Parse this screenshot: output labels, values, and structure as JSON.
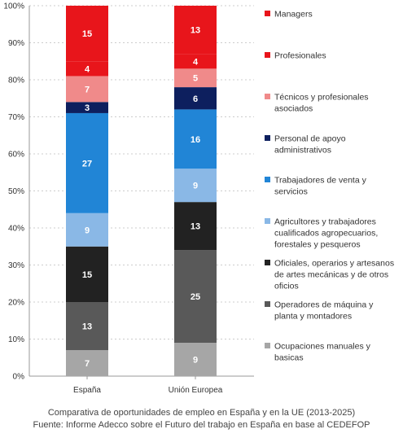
{
  "chart_data": {
    "type": "bar",
    "stacked": true,
    "categories": [
      "España",
      "Unión Europea"
    ],
    "yticks": [
      "0%",
      "10%",
      "20%",
      "30%",
      "40%",
      "50%",
      "60%",
      "70%",
      "80%",
      "90%",
      "100%"
    ],
    "ylim": [
      0,
      100
    ],
    "grid": "horizontal dashed",
    "legend_position": "right",
    "series": [
      {
        "name": "Ocupaciones manuales y basicas",
        "color": "#a6a6a6",
        "values": [
          7,
          9
        ]
      },
      {
        "name": "Operadores de máquina y planta y montadores",
        "color": "#595959",
        "values": [
          13,
          25
        ]
      },
      {
        "name": "Oficiales, operarios y artesanos de artes mecánicas y de otros oficios",
        "color": "#222222",
        "values": [
          15,
          13
        ]
      },
      {
        "name": "Agricultores y trabajadores cualificados agropecuarios, forestales y pesqueros",
        "color": "#8ab8e6",
        "values": [
          9,
          9
        ]
      },
      {
        "name": "Trabajadores de venta y servicios",
        "color": "#2185d6",
        "values": [
          27,
          16
        ]
      },
      {
        "name": "Personal de apoyo administrativos",
        "color": "#0d1f5e",
        "values": [
          3,
          6
        ]
      },
      {
        "name": "Técnicos y profesionales asociados",
        "color": "#f08a8a",
        "values": [
          7,
          5
        ]
      },
      {
        "name": "Profesionales",
        "color": "#e8151b",
        "values": [
          4,
          4
        ]
      },
      {
        "name": "Managers",
        "color": "#e8151b",
        "values": [
          15,
          13
        ]
      }
    ],
    "legend": [
      {
        "lines": [
          "Managers"
        ],
        "color": "#e8151b"
      },
      {
        "lines": [
          "Profesionales"
        ],
        "color": "#e8151b"
      },
      {
        "lines": [
          "Técnicos y profesionales",
          "asociados"
        ],
        "color": "#f08a8a"
      },
      {
        "lines": [
          "Personal de apoyo",
          "administrativos"
        ],
        "color": "#0d1f5e"
      },
      {
        "lines": [
          "Trabajadores de venta y",
          "servicios"
        ],
        "color": "#2185d6"
      },
      {
        "lines": [
          "Agricultores y trabajadores",
          "cualificados agropecuarios,",
          "forestales y pesqueros"
        ],
        "color": "#8ab8e6"
      },
      {
        "lines": [
          "Oficiales, operarios y artesanos",
          "de artes mecánicas y de otros",
          "oficios"
        ],
        "color": "#222222"
      },
      {
        "lines": [
          "Operadores de máquina y",
          "planta y montadores"
        ],
        "color": "#595959"
      },
      {
        "lines": [
          "Ocupaciones manuales y",
          "basicas"
        ],
        "color": "#a6a6a6"
      }
    ]
  },
  "caption": {
    "line1": "Comparativa de oportunidades de empleo en España y en la UE (2013-2025)",
    "line2": "Fuente: Informe Adecco sobre el Futuro del trabajo en España en base al CEDEFOP"
  }
}
